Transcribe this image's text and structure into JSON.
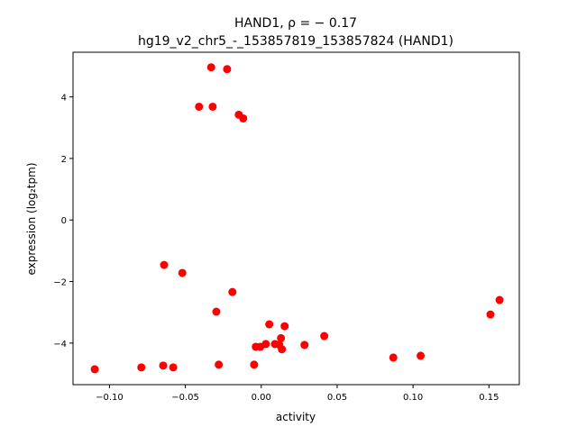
{
  "chart_data": {
    "type": "scatter",
    "title_line1": "HAND1, ρ = − 0.17",
    "title_line2": "hg19_v2_chr5_-_153857819_153857824 (HAND1)",
    "xlabel": "activity",
    "ylabel": "expression (log₂tpm)",
    "xlim": [
      -0.124,
      0.17
    ],
    "ylim": [
      -5.35,
      5.45
    ],
    "xticks": [
      -0.1,
      -0.05,
      0.0,
      0.05,
      0.1,
      0.15
    ],
    "xtick_labels": [
      "−0.10",
      "−0.05",
      "0.00",
      "0.05",
      "0.10",
      "0.15"
    ],
    "yticks": [
      -4,
      -2,
      0,
      2,
      4
    ],
    "ytick_labels": [
      "−4",
      "−2",
      "0",
      "2",
      "4"
    ],
    "marker_color": "#ff0000",
    "points": [
      [
        -0.033,
        4.96
      ],
      [
        -0.0225,
        4.9
      ],
      [
        -0.041,
        3.68
      ],
      [
        -0.032,
        3.68
      ],
      [
        -0.0148,
        3.42
      ],
      [
        -0.0119,
        3.3
      ],
      [
        -0.064,
        -1.46
      ],
      [
        -0.052,
        -1.72
      ],
      [
        -0.019,
        -2.34
      ],
      [
        -0.0296,
        -2.98
      ],
      [
        0.157,
        -2.6
      ],
      [
        0.151,
        -3.07
      ],
      [
        0.0053,
        -3.39
      ],
      [
        0.0154,
        -3.45
      ],
      [
        0.0415,
        -3.77
      ],
      [
        0.003,
        -4.03
      ],
      [
        -0.0036,
        -4.12
      ],
      [
        -0.0006,
        -4.12
      ],
      [
        0.009,
        -4.03
      ],
      [
        0.013,
        -3.84
      ],
      [
        0.0118,
        -4.05
      ],
      [
        0.0136,
        -4.2
      ],
      [
        0.0285,
        -4.06
      ],
      [
        0.087,
        -4.47
      ],
      [
        0.105,
        -4.41
      ],
      [
        -0.0047,
        -4.7
      ],
      [
        -0.028,
        -4.7
      ],
      [
        -0.0646,
        -4.73
      ],
      [
        -0.058,
        -4.79
      ],
      [
        -0.079,
        -4.79
      ],
      [
        -0.1097,
        -4.85
      ]
    ]
  }
}
